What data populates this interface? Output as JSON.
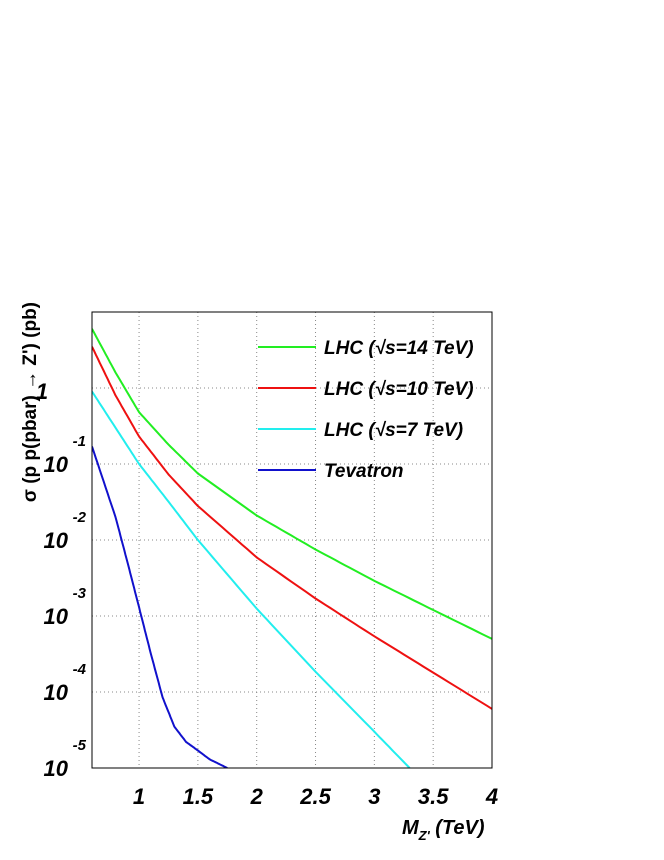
{
  "chart_data": {
    "type": "line",
    "xlabel": "M_Z' (TeV)",
    "xlabel_main": "M",
    "xlabel_sub": "Z'",
    "xlabel_unit": " (TeV)",
    "ylabel": "σ (p p(pbar) → Z') (pb)",
    "xlim": [
      0.6,
      4.0
    ],
    "ylim": [
      1e-05,
      10
    ],
    "yscale": "log",
    "grid": true,
    "legend_position": "top-right",
    "x_ticks": [
      {
        "value": 1,
        "label": "1"
      },
      {
        "value": 1.5,
        "label": "1.5"
      },
      {
        "value": 2,
        "label": "2"
      },
      {
        "value": 2.5,
        "label": "2.5"
      },
      {
        "value": 3,
        "label": "3"
      },
      {
        "value": 3.5,
        "label": "3.5"
      },
      {
        "value": 4,
        "label": "4"
      }
    ],
    "y_ticks": [
      {
        "value": 1,
        "base": "1",
        "exp": ""
      },
      {
        "value": 0.1,
        "base": "10",
        "exp": "-1"
      },
      {
        "value": 0.01,
        "base": "10",
        "exp": "-2"
      },
      {
        "value": 0.001,
        "base": "10",
        "exp": "-3"
      },
      {
        "value": 0.0001,
        "base": "10",
        "exp": "-4"
      },
      {
        "value": 1e-05,
        "base": "10",
        "exp": "-5"
      }
    ],
    "series": [
      {
        "name": "LHC (√s=14 TeV)",
        "color": "#22ee22",
        "x": [
          0.6,
          0.8,
          1.0,
          1.25,
          1.5,
          2.0,
          2.5,
          3.0,
          3.5,
          4.0
        ],
        "y": [
          6.0,
          1.6,
          0.48,
          0.18,
          0.075,
          0.021,
          0.0075,
          0.0029,
          0.0012,
          0.0005
        ]
      },
      {
        "name": "LHC (√s=10 TeV)",
        "color": "#ee1111",
        "x": [
          0.6,
          0.8,
          1.0,
          1.25,
          1.5,
          2.0,
          2.5,
          3.0,
          3.5,
          4.0
        ],
        "y": [
          3.5,
          0.8,
          0.23,
          0.073,
          0.028,
          0.0059,
          0.0017,
          0.00054,
          0.00018,
          6e-05
        ]
      },
      {
        "name": "LHC (√s=7 TeV)",
        "color": "#22eeee",
        "x": [
          0.6,
          0.8,
          1.0,
          1.25,
          1.5,
          2.0,
          2.5,
          3.0,
          3.3
        ],
        "y": [
          0.9,
          0.3,
          0.1,
          0.032,
          0.01,
          0.00125,
          0.000185,
          3e-05,
          1e-05
        ]
      },
      {
        "name": "Tevatron",
        "color": "#1111cc",
        "x": [
          0.6,
          0.8,
          0.9,
          1.0,
          1.1,
          1.2,
          1.3,
          1.4,
          1.5,
          1.6,
          1.75
        ],
        "y": [
          0.17,
          0.02,
          0.0052,
          0.0013,
          0.00032,
          8.5e-05,
          3.5e-05,
          2.2e-05,
          1.7e-05,
          1.3e-05,
          1e-05
        ]
      }
    ]
  }
}
